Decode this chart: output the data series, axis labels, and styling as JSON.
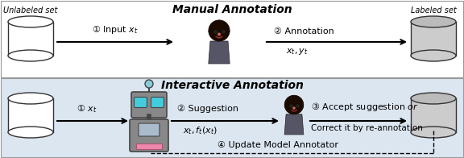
{
  "fig_width": 5.76,
  "fig_height": 1.96,
  "dpi": 100,
  "bg_top": "#ffffff",
  "bg_bottom": "#dce6f1",
  "title_top": "Manual Annotation",
  "title_bottom": "Interactive Annotation",
  "label_unlabeled": "Unlabeled set",
  "label_labeled": "Labeled set",
  "arrow1_top_label": "① Input $x_t$",
  "arrow2_top_label": "② Annotation",
  "arrow_top_sub": "$x_t, y_t$",
  "arrow1_bot_label": "① $x_t$",
  "arrow2_bot_label": "② Suggestion",
  "arrow2_bot_sub": "$x_t, f_t(x_t)$",
  "arrow3_bot_label": "③ Accept suggestion $\\it{or}$",
  "arrow3_bot_sub": "Correct it by re-annotation",
  "arrow4_bot_label": "④ Update Model Annotator",
  "skin_color": "#f5b89a",
  "hair_color": "#1a0a00",
  "body_color": "#555566",
  "robot_body_color": "#888888",
  "robot_eye_color": "#44ccdd",
  "robot_mouth_color": "#ee88aa",
  "robot_chest_color": "#aaaaaa",
  "cyl_unlabeled_top": "#ffffff",
  "cyl_unlabeled_body": "#ffffff",
  "cyl_labeled_top": "#bbbbbb",
  "cyl_labeled_body": "#cccccc"
}
